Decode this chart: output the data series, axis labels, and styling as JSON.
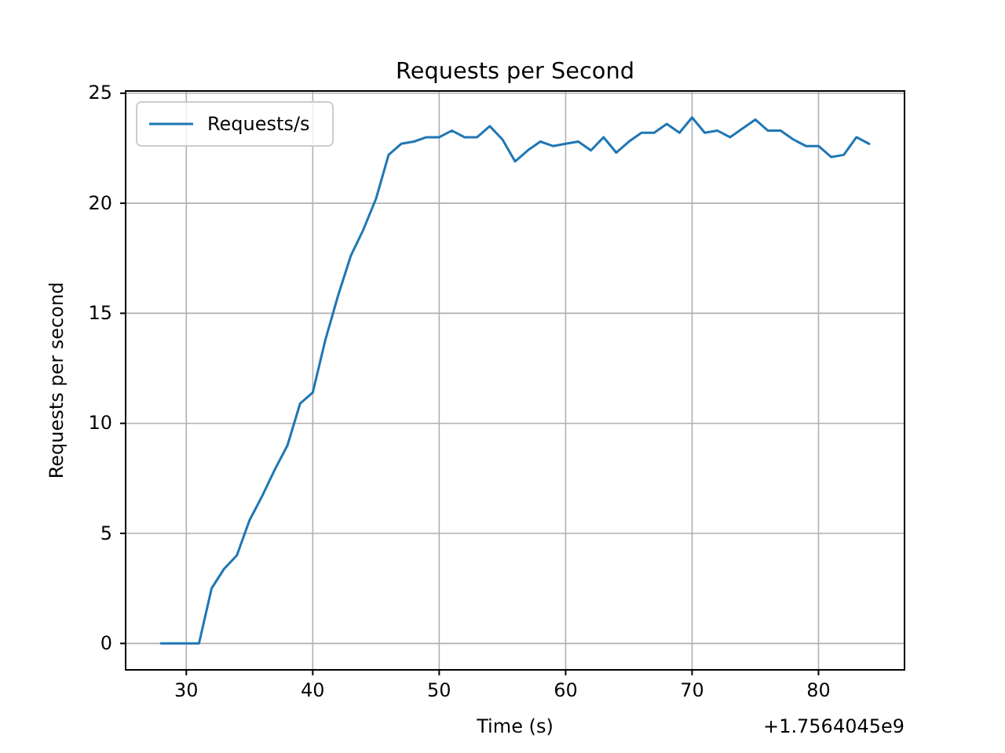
{
  "chart_data": {
    "type": "line",
    "title": "Requests per Second",
    "xlabel": "Time (s)",
    "ylabel": "Requests per second",
    "annotations": [
      "+1.7564045e9"
    ],
    "x": [
      28,
      29,
      30,
      31,
      32,
      33,
      34,
      35,
      36,
      37,
      38,
      39,
      40,
      41,
      42,
      43,
      44,
      45,
      46,
      47,
      48,
      49,
      50,
      51,
      52,
      53,
      54,
      55,
      56,
      57,
      58,
      59,
      60,
      61,
      62,
      63,
      64,
      65,
      66,
      67,
      68,
      69,
      70,
      71,
      72,
      73,
      74,
      75,
      76,
      77,
      78,
      79,
      80,
      81,
      82,
      83,
      84
    ],
    "series": [
      {
        "name": "Requests/s",
        "color": "#1f77b4",
        "values": [
          0,
          0,
          0,
          0,
          2.5,
          3.4,
          4.0,
          5.6,
          6.7,
          7.9,
          9.0,
          10.9,
          11.4,
          13.8,
          15.8,
          17.6,
          18.8,
          20.2,
          22.2,
          22.7,
          22.8,
          23.0,
          23.0,
          23.3,
          23.0,
          23.0,
          23.5,
          22.9,
          21.9,
          22.4,
          22.8,
          22.6,
          22.7,
          22.8,
          22.4,
          23.0,
          22.3,
          22.8,
          23.2,
          23.2,
          23.6,
          23.2,
          23.9,
          23.2,
          23.3,
          23.0,
          23.4,
          23.8,
          23.3,
          23.3,
          22.9,
          22.6,
          22.6,
          22.1,
          22.2,
          23.0,
          22.7
        ]
      }
    ],
    "xlim": [
      25.2,
      86.8
    ],
    "ylim": [
      -1.2,
      25.1
    ],
    "xticks": [
      30,
      40,
      50,
      60,
      70,
      80
    ],
    "yticks": [
      0,
      5,
      10,
      15,
      20,
      25
    ],
    "grid": true,
    "legend": "top left",
    "line_style": "solid",
    "marker": "none"
  }
}
